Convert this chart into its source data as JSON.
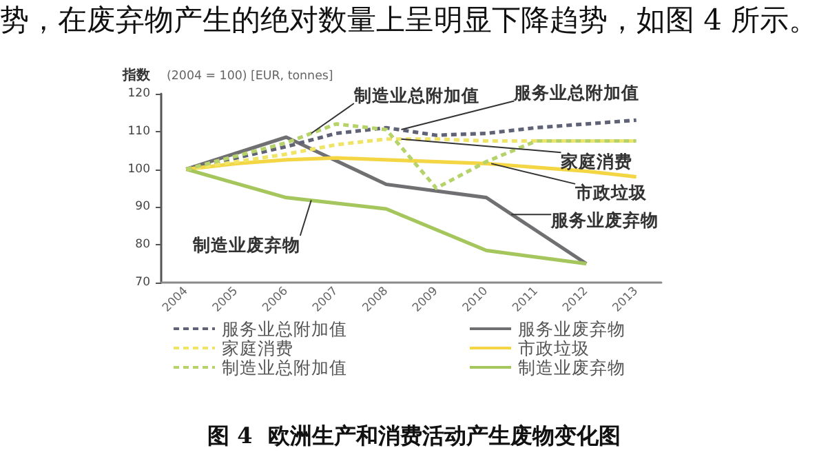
{
  "chart_data": {
    "type": "line",
    "title": "图 4  欧洲生产和消费活动产生废物变化图",
    "ylabel": "指数",
    "annotations": [
      "势，在废弃物产生的绝对数量上呈明显下降趋势，如图 4 所示。",
      "(2004 = 100) [EUR, tonnes]",
      {
        "text": "制造业总附加值",
        "x": 2006.5,
        "y": 109.5
      },
      {
        "text": "服务业总附加值",
        "x": 2008.3,
        "y": 110.5
      },
      {
        "text": "家庭消费",
        "x": 2008.3,
        "y": 108
      },
      {
        "text": "市政垃圾",
        "x": 2010.1,
        "y": 101.5
      },
      {
        "text": "服务业废弃物",
        "x": 2010.5,
        "y": 88
      },
      {
        "text": "制造业废弃物",
        "x": 2006.5,
        "y": 91.8
      }
    ],
    "x": [
      2004,
      2005,
      2006,
      2007,
      2008,
      2009,
      2010,
      2011,
      2012,
      2013
    ],
    "xlim": [
      2003.5,
      2013.5
    ],
    "xticks": [
      2004,
      2005,
      2006,
      2007,
      2008,
      2009,
      2010,
      2011,
      2012,
      2013
    ],
    "ylim": [
      70,
      120
    ],
    "yticks": [
      70,
      80,
      90,
      100,
      110,
      120
    ],
    "legend": "bottom",
    "marker": "none",
    "series": [
      {
        "name": "服务业总附加值",
        "color": "#5f6375",
        "line_style": "dashed",
        "values": [
          100,
          103,
          106,
          109.5,
          111,
          109,
          109.5,
          111,
          112,
          113
        ]
      },
      {
        "name": "服务业废弃物",
        "color": "#707073",
        "line_style": "solid",
        "x": [
          2004,
          2006,
          2008,
          2010,
          2012
        ],
        "values": [
          100,
          108.5,
          96,
          92.5,
          75
        ]
      },
      {
        "name": "家庭消费",
        "color": "#efe463",
        "line_style": "dashed",
        "values": [
          100,
          102,
          104,
          106.5,
          108,
          108,
          107.5,
          107.5,
          107.5,
          107.5
        ]
      },
      {
        "name": "市政垃圾",
        "color": "#f4d645",
        "line_style": "solid",
        "values": [
          100,
          101.5,
          102.5,
          103,
          102.5,
          102,
          101.5,
          100.5,
          99.5,
          98
        ]
      },
      {
        "name": "制造业总附加值",
        "color": "#b6d26a",
        "line_style": "dashed",
        "values": [
          100,
          103.5,
          107,
          112,
          110.5,
          95,
          102,
          107.5,
          107.5,
          107.5
        ]
      },
      {
        "name": "制造业废弃物",
        "color": "#a5c65c",
        "line_style": "solid",
        "x": [
          2004,
          2006,
          2008,
          2010,
          2012
        ],
        "values": [
          100,
          92.5,
          89.5,
          78.5,
          75
        ]
      }
    ]
  }
}
